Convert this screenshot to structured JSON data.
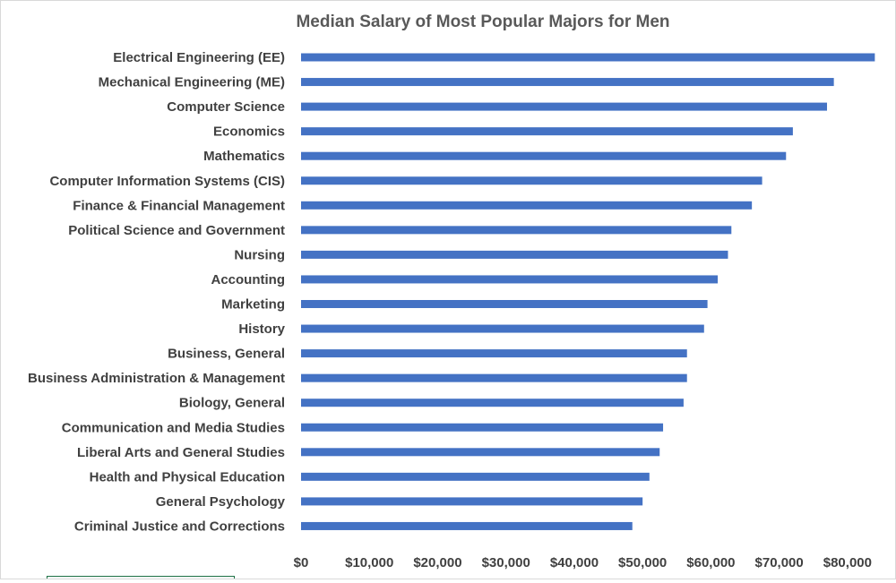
{
  "chart_data": {
    "type": "bar",
    "orientation": "horizontal",
    "title": "Median Salary of Most Popular Majors for Men",
    "xlabel": "",
    "ylabel": "",
    "xlim": [
      0,
      85000
    ],
    "grid": false,
    "legend": "none",
    "bar_color": "#4472c4",
    "x_tick_values": [
      0,
      10000,
      20000,
      30000,
      40000,
      50000,
      60000,
      70000,
      80000
    ],
    "x_tick_labels": [
      "$0",
      "$10,000",
      "$20,000",
      "$30,000",
      "$40,000",
      "$50,000",
      "$60,000",
      "$70,000",
      "$80,000"
    ],
    "categories": [
      "Electrical Engineering (EE)",
      "Mechanical Engineering (ME)",
      "Computer Science",
      "Economics",
      "Mathematics",
      "Computer Information Systems (CIS)",
      "Finance & Financial Management",
      "Political Science and Government",
      "Nursing",
      "Accounting",
      "Marketing",
      "History",
      "Business, General",
      "Business Administration & Management",
      "Biology, General",
      "Communication and Media Studies",
      "Liberal Arts and General Studies",
      "Health and Physical Education",
      "General Psychology",
      "Criminal Justice and Corrections"
    ],
    "values": [
      84000,
      78000,
      77000,
      72000,
      71000,
      67500,
      66000,
      63000,
      62500,
      61000,
      59500,
      59000,
      56500,
      56500,
      56000,
      53000,
      52500,
      51000,
      50000,
      48500
    ]
  }
}
